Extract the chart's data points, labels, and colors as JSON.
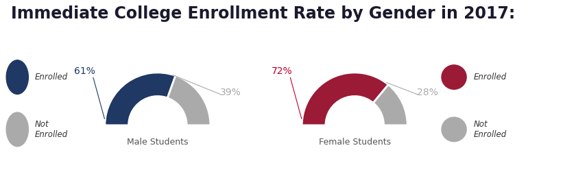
{
  "title": "Immediate College Enrollment Rate by Gender in 2017:",
  "title_fontsize": 17,
  "title_color": "#1a1a2e",
  "title_fontweight": "bold",
  "background_color": "#ffffff",
  "charts": [
    {
      "label": "Male Students",
      "enrolled_pct": 61,
      "not_enrolled_pct": 39,
      "enrolled_color": "#1f3864",
      "not_enrolled_color": "#aaaaaa",
      "enrolled_label_color": "#1f3864",
      "not_enrolled_label_color": "#aaaaaa"
    },
    {
      "label": "Female Students",
      "enrolled_pct": 72,
      "not_enrolled_pct": 28,
      "enrolled_color": "#9b1a35",
      "not_enrolled_color": "#aaaaaa",
      "enrolled_label_color": "#c0002a",
      "not_enrolled_label_color": "#aaaaaa"
    }
  ],
  "legend_male_enrolled_color": "#1f3864",
  "legend_male_not_enrolled_color": "#aaaaaa",
  "legend_female_enrolled_color": "#9b1a35",
  "legend_female_not_enrolled_color": "#aaaaaa",
  "outer_r": 1.0,
  "inner_r": 0.55,
  "label_fontsize": 10,
  "sublabel_fontsize": 9
}
